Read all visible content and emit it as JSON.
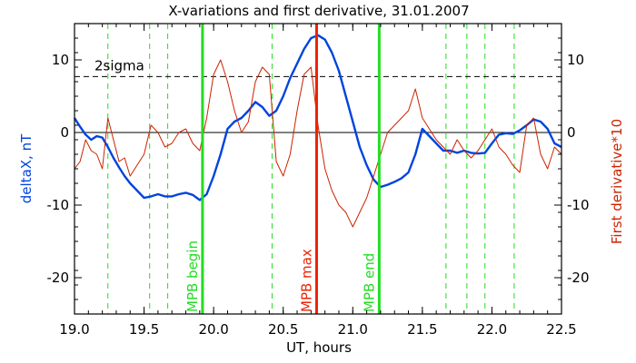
{
  "chart_data": {
    "type": "line",
    "title": "X-variations and first derivative, 31.01.2007",
    "xlabel": "UT, hours",
    "ylabel_left": "deltaX, nT",
    "ylabel_right": "First derivative*10",
    "xlim": [
      19.0,
      22.5
    ],
    "ylim": [
      -25,
      15
    ],
    "x_ticks": [
      19.0,
      19.5,
      20.0,
      20.5,
      21.0,
      21.5,
      22.0,
      22.5
    ],
    "x_tick_labels": [
      "19.0",
      "19.5",
      "20.0",
      "20.5",
      "21.0",
      "21.5",
      "22.0",
      "22.5"
    ],
    "y_ticks_left": [
      10,
      0,
      -10,
      -20
    ],
    "y_tick_labels_left": [
      "10",
      "0",
      "-10",
      "-20"
    ],
    "y_ticks_right": [
      10,
      0,
      -10,
      -20
    ],
    "y_tick_labels_right": [
      "10",
      "0",
      "-10",
      "-20"
    ],
    "zero_line": 0,
    "sigma_line": {
      "label": "2sigma",
      "value": 7.7
    },
    "dashed_markers_x": [
      19.24,
      19.54,
      19.67,
      20.42,
      21.67,
      21.82,
      21.95,
      22.16
    ],
    "markers": [
      {
        "label": "MPB begin",
        "x": 19.92,
        "color": "#22dd22"
      },
      {
        "label": "MPB max",
        "x": 20.74,
        "color": "#ee2200"
      },
      {
        "label": "MPB end",
        "x": 21.19,
        "color": "#22dd22"
      }
    ],
    "series": [
      {
        "color": "#0044dd",
        "x": [
          19.0,
          19.04,
          19.08,
          19.12,
          19.16,
          19.2,
          19.24,
          19.28,
          19.32,
          19.36,
          19.4,
          19.45,
          19.5,
          19.55,
          19.6,
          19.65,
          19.7,
          19.75,
          19.8,
          19.85,
          19.9,
          19.95,
          20.0,
          20.05,
          20.1,
          20.15,
          20.2,
          20.25,
          20.3,
          20.35,
          20.4,
          20.45,
          20.5,
          20.55,
          20.6,
          20.65,
          20.7,
          20.75,
          20.8,
          20.85,
          20.9,
          20.95,
          21.0,
          21.05,
          21.1,
          21.15,
          21.2,
          21.25,
          21.3,
          21.35,
          21.4,
          21.45,
          21.5,
          21.55,
          21.6,
          21.65,
          21.7,
          21.75,
          21.8,
          21.85,
          21.9,
          21.95,
          22.0,
          22.05,
          22.1,
          22.15,
          22.2,
          22.25,
          22.3,
          22.35,
          22.4,
          22.45,
          22.5
        ],
        "values": [
          2,
          0.8,
          -0.3,
          -1,
          -0.5,
          -0.7,
          -2,
          -3.5,
          -4.8,
          -6,
          -7,
          -8,
          -9,
          -8.8,
          -8.5,
          -8.8,
          -8.8,
          -8.5,
          -8.3,
          -8.6,
          -9.3,
          -8.5,
          -6,
          -3,
          0.5,
          1.5,
          2,
          3,
          4.2,
          3.5,
          2.3,
          3,
          5,
          7.5,
          9.5,
          11.5,
          13,
          13.4,
          12.8,
          11,
          8.5,
          5,
          1.5,
          -2,
          -4.5,
          -6.5,
          -7.5,
          -7.2,
          -6.8,
          -6.3,
          -5.5,
          -3,
          0.5,
          -0.5,
          -1.5,
          -2.5,
          -2.5,
          -2.8,
          -2.5,
          -2.8,
          -2.9,
          -2.8,
          -1.5,
          -0.3,
          -0.1,
          -0.2,
          0.3,
          1,
          1.8,
          1.5,
          0.5,
          -1.5,
          -2
        ]
      },
      {
        "color": "#cc2200",
        "x": [
          19.0,
          19.04,
          19.08,
          19.12,
          19.16,
          19.2,
          19.24,
          19.28,
          19.32,
          19.36,
          19.4,
          19.45,
          19.5,
          19.55,
          19.6,
          19.65,
          19.7,
          19.75,
          19.8,
          19.85,
          19.9,
          19.95,
          20.0,
          20.05,
          20.1,
          20.15,
          20.2,
          20.25,
          20.3,
          20.35,
          20.4,
          20.45,
          20.5,
          20.55,
          20.6,
          20.65,
          20.7,
          20.75,
          20.8,
          20.85,
          20.9,
          20.95,
          21.0,
          21.05,
          21.1,
          21.15,
          21.2,
          21.25,
          21.3,
          21.35,
          21.4,
          21.45,
          21.5,
          21.55,
          21.6,
          21.65,
          21.7,
          21.75,
          21.8,
          21.85,
          21.9,
          21.95,
          22.0,
          22.05,
          22.1,
          22.15,
          22.2,
          22.25,
          22.3,
          22.35,
          22.4,
          22.45,
          22.5
        ],
        "values": [
          -5,
          -4,
          -1,
          -2.5,
          -3,
          -5,
          2,
          -1,
          -4,
          -3.5,
          -6,
          -4.5,
          -3,
          1,
          0,
          -2,
          -1.5,
          0,
          0.5,
          -1.5,
          -2.5,
          2,
          8,
          10,
          7,
          3,
          0,
          1.5,
          7,
          9,
          8,
          -4,
          -6,
          -3,
          3,
          8,
          9,
          1,
          -5,
          -8,
          -10,
          -11,
          -13,
          -11,
          -9,
          -6,
          -3,
          0,
          1,
          2,
          3,
          6,
          2,
          0.5,
          -1,
          -2,
          -3,
          -1,
          -2.5,
          -3.5,
          -2.5,
          -1,
          0.5,
          -2,
          -3,
          -4.5,
          -5.5,
          1,
          2,
          -3,
          -5,
          -2,
          -3
        ]
      }
    ]
  }
}
